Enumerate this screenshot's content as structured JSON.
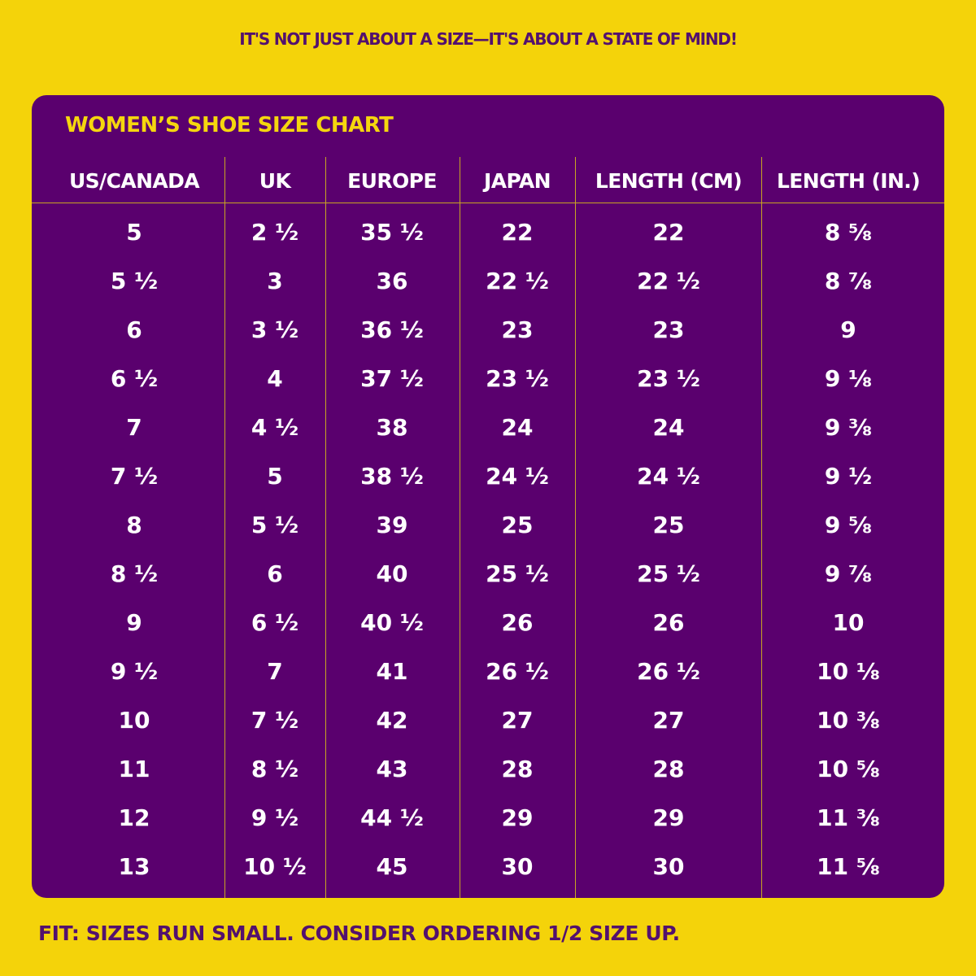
{
  "headline": "IT'S NOT JUST ABOUT A SIZE—IT'S ABOUT A STATE OF MIND!",
  "chart_title": "WOMEN’S SHOE SIZE CHART",
  "columns": [
    "US/CANADA",
    "UK",
    "EUROPE",
    "JAPAN",
    "LENGTH (CM)",
    "LENGTH (IN.)"
  ],
  "rows": [
    [
      "5",
      "2 ½",
      "35 ½",
      "22",
      "22",
      "8 ⅝"
    ],
    [
      "5 ½",
      "3",
      "36",
      "22 ½",
      "22 ½",
      "8 ⅞"
    ],
    [
      "6",
      "3 ½",
      "36 ½",
      "23",
      "23",
      "9"
    ],
    [
      "6 ½",
      "4",
      "37 ½",
      "23 ½",
      "23 ½",
      "9 ⅛"
    ],
    [
      "7",
      "4 ½",
      "38",
      "24",
      "24",
      "9 ⅜"
    ],
    [
      "7 ½",
      "5",
      "38 ½",
      "24 ½",
      "24 ½",
      "9 ½"
    ],
    [
      "8",
      "5 ½",
      "39",
      "25",
      "25",
      "9 ⅝"
    ],
    [
      "8 ½",
      "6",
      "40",
      "25 ½",
      "25 ½",
      "9 ⅞"
    ],
    [
      "9",
      "6 ½",
      "40 ½",
      "26",
      "26",
      "10"
    ],
    [
      "9 ½",
      "7",
      "41",
      "26 ½",
      "26 ½",
      "10 ⅛"
    ],
    [
      "10",
      "7 ½",
      "42",
      "27",
      "27",
      "10 ⅜"
    ],
    [
      "11",
      "8 ½",
      "43",
      "28",
      "28",
      "10 ⅝"
    ],
    [
      "12",
      "9 ½",
      "44 ½",
      "29",
      "29",
      "11 ⅜"
    ],
    [
      "13",
      "10 ½",
      "45",
      "30",
      "30",
      "11 ⅝"
    ]
  ],
  "footer": "FIT: SIZES RUN SMALL. CONSIDER ORDERING 1/2 SIZE UP.",
  "colors": {
    "background": "#f4d30a",
    "card": "#5a006e",
    "accent_text": "#f5d60e",
    "headline_text": "#53116e",
    "cell_text": "#ffffff",
    "rule": "#c9a622"
  }
}
